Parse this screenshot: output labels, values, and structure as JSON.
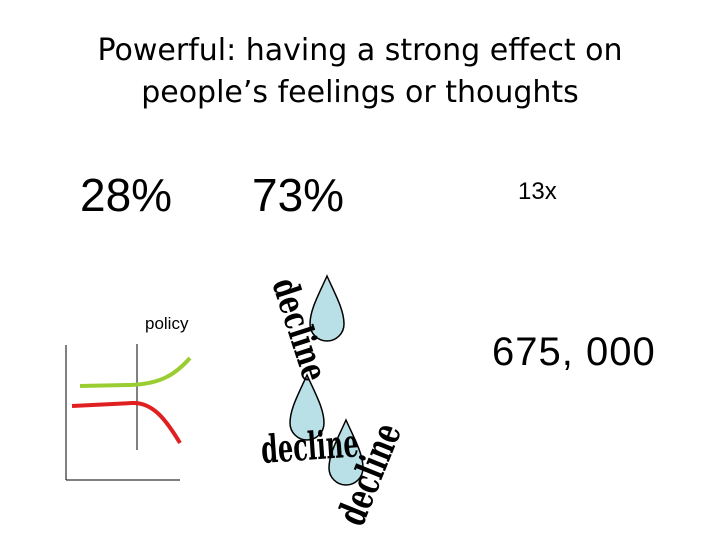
{
  "title": {
    "line1": "Powerful: having a strong effect on",
    "line2": "people’s feelings or thoughts"
  },
  "stats": {
    "first": "28%",
    "second": "73%",
    "third": "13x",
    "fourth": "675, 000"
  },
  "graph_label": "policy",
  "decline_word": "decline",
  "colors": {
    "green_line": "#9acd32",
    "red_line": "#e02020",
    "drop_fill": "#b8e0e6"
  }
}
